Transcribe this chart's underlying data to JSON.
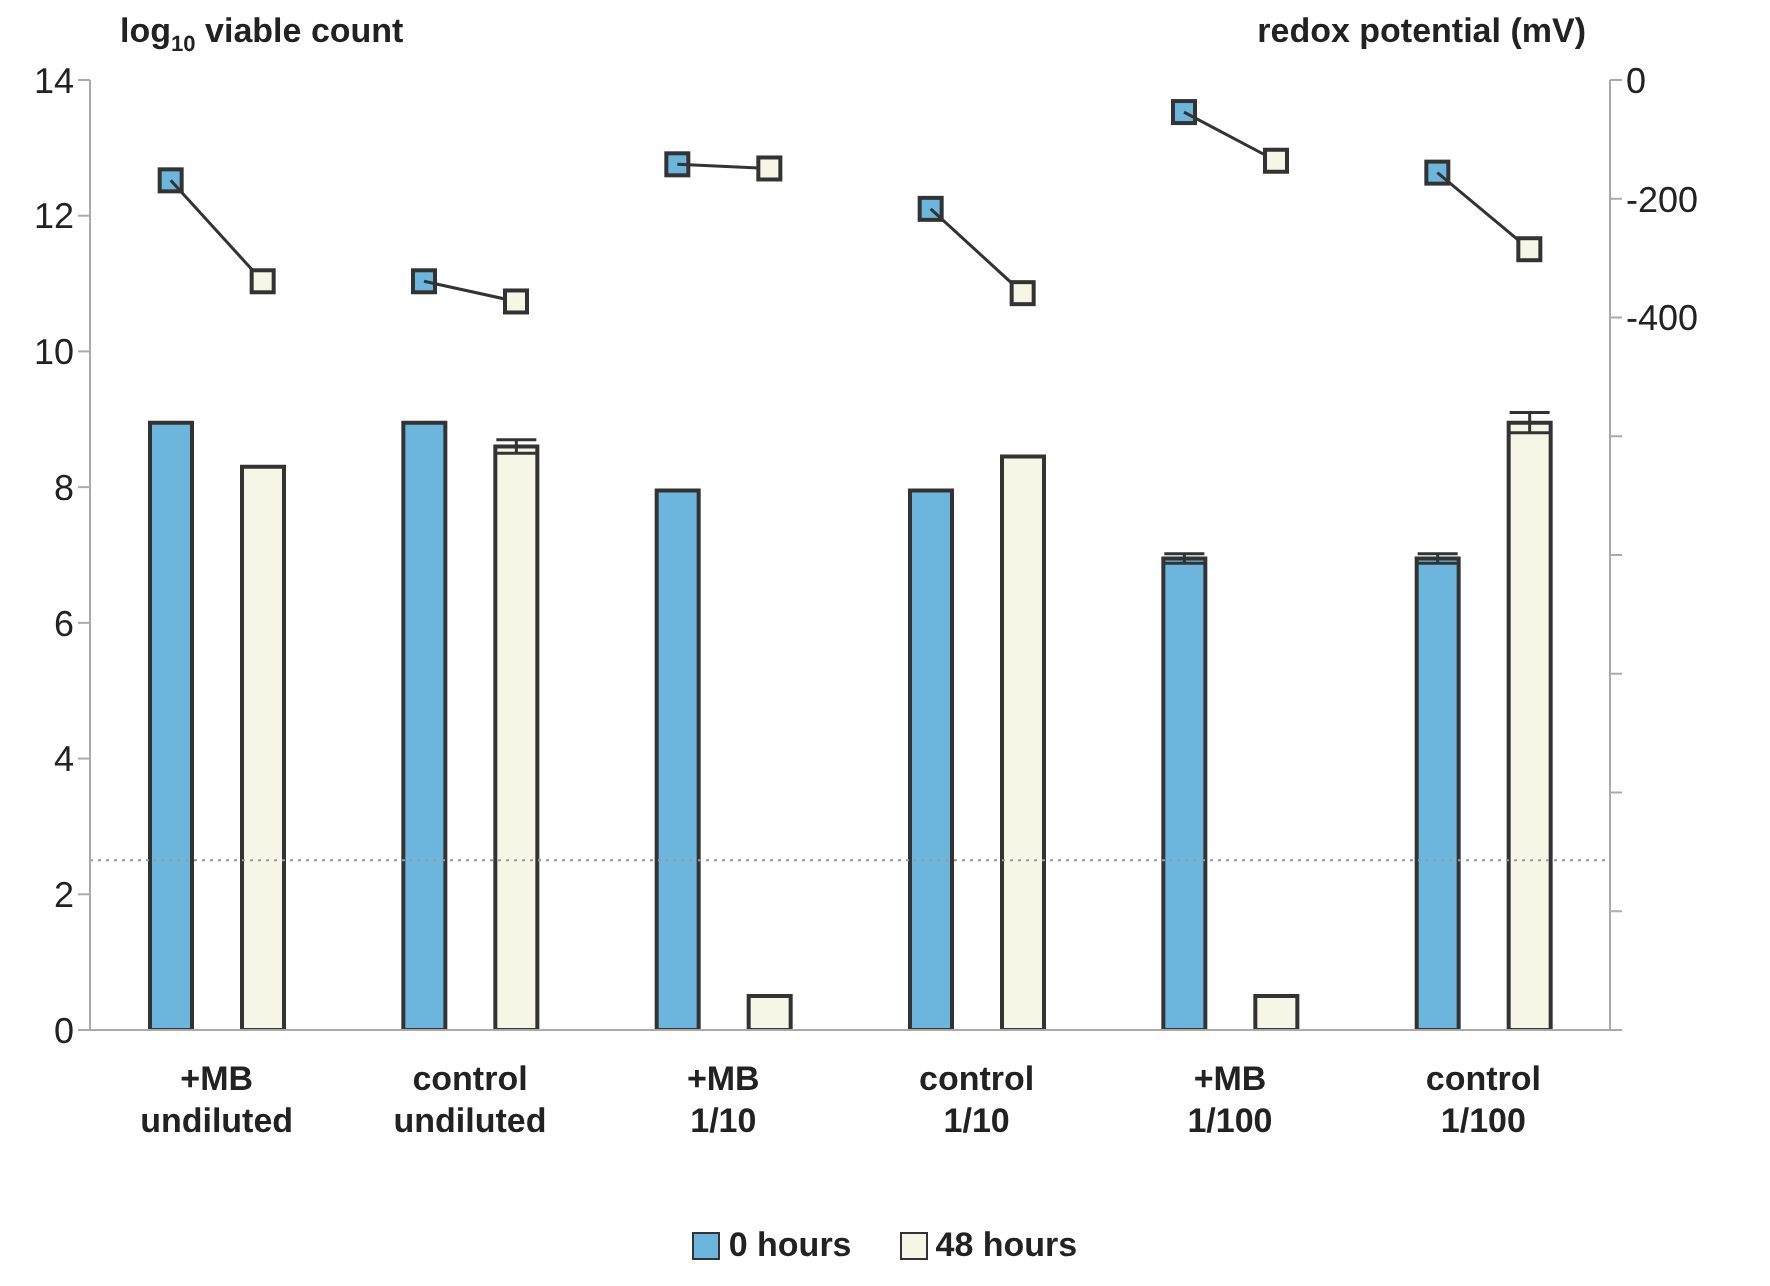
{
  "chart_data": {
    "type": "bar",
    "ylabel": "log$_{10}$ viable count",
    "y2label": "redox potential (mV)",
    "categories": [
      "+MB\nundiluted",
      "control\nundiluted",
      "+MB\n1/10",
      "control\n1/10",
      "+MB\n1/100",
      "control\n1/100"
    ],
    "series": [
      {
        "name": "0 hours",
        "color": "#6cb6de",
        "values": [
          8.95,
          8.95,
          7.95,
          7.95,
          6.95,
          6.95
        ],
        "errors": [
          null,
          null,
          null,
          null,
          0.07,
          0.07
        ]
      },
      {
        "name": "48 hours",
        "color": "#f6f6e6",
        "values": [
          8.3,
          8.6,
          0.5,
          8.45,
          0.5,
          8.95
        ],
        "errors": [
          null,
          0.1,
          null,
          null,
          null,
          0.15
        ]
      },
      {
        "type": "scatter",
        "axis": "y2",
        "color": "#6cb6de",
        "values": [
          -169,
          -339,
          -142,
          -217,
          -54,
          -156
        ]
      },
      {
        "type": "scatter",
        "axis": "y2",
        "color": "#f6f6e6",
        "values": [
          -339,
          -373,
          -149,
          -359,
          -136,
          -285
        ]
      }
    ],
    "ylim": [
      0,
      14
    ],
    "yticks": [
      0,
      2,
      4,
      6,
      8,
      10,
      12,
      14
    ],
    "y2lim": [
      -1600,
      0
    ],
    "y2ticks": [
      0,
      -200,
      -400,
      {
        "value": -600,
        "label": null
      },
      {
        "value": -800,
        "label": null
      },
      {
        "value": -1000,
        "label": null
      },
      {
        "value": -1200,
        "label": null
      },
      {
        "value": -1400,
        "label": null
      },
      {
        "value": -1600,
        "label": null
      }
    ],
    "ref_lines": [
      {
        "axis": "y",
        "value": 2.5,
        "color": "#999999",
        "line_style": "dotted"
      }
    ],
    "marker": "square",
    "legend": "bottom"
  }
}
